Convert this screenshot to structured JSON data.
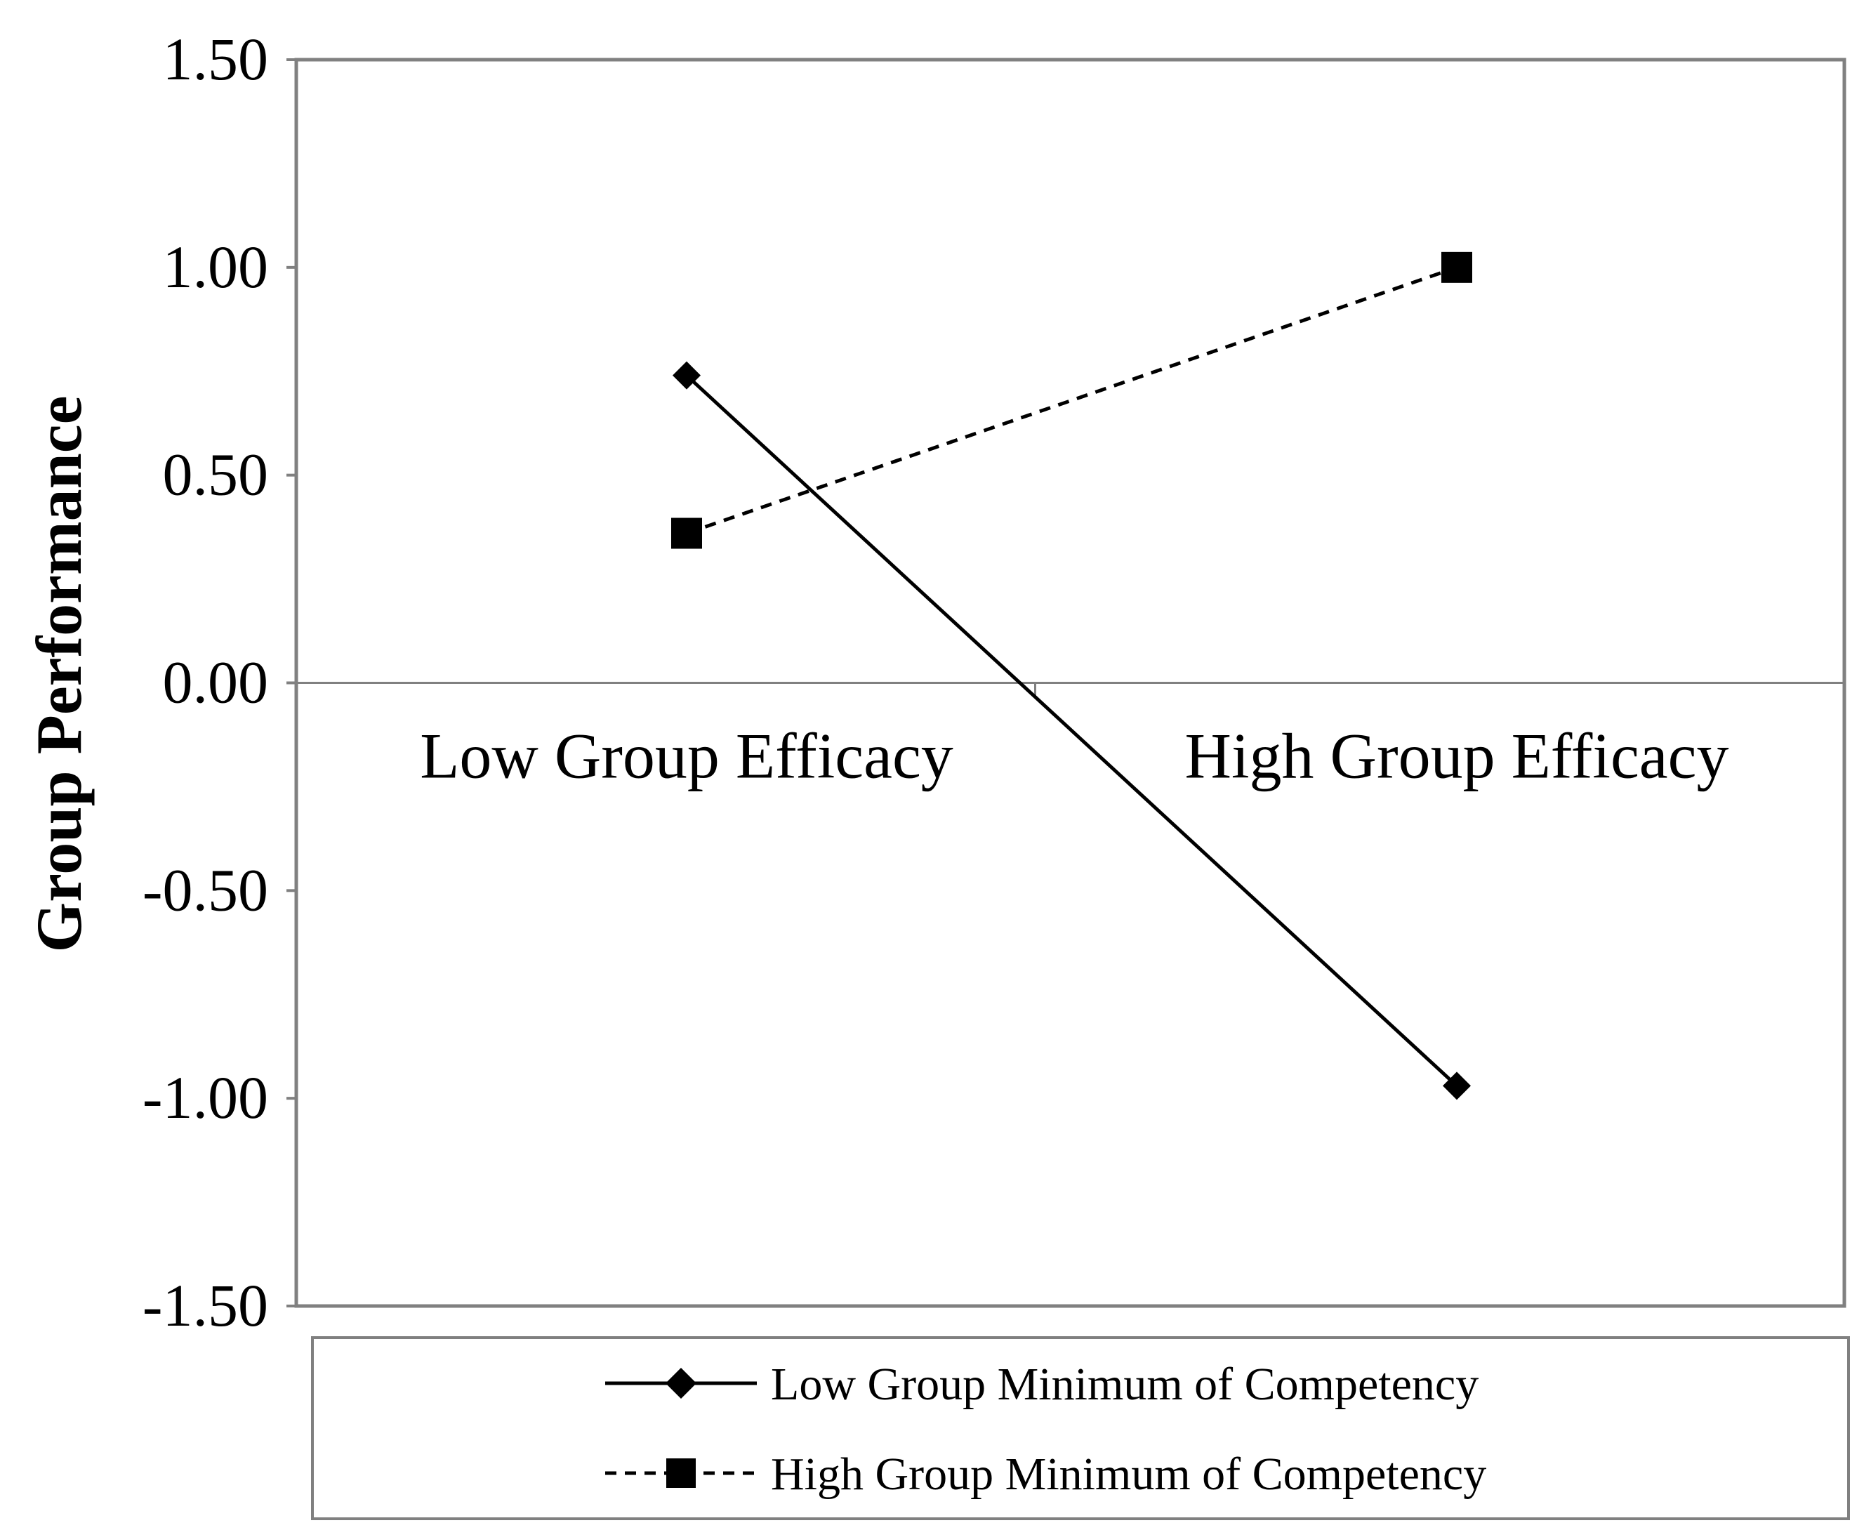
{
  "chart_data": {
    "type": "line",
    "title": "",
    "xlabel": "",
    "ylabel": "Group Performance",
    "categories": [
      "Low Group Efficacy",
      "High Group Efficacy"
    ],
    "ylim": [
      -1.5,
      1.5
    ],
    "yticks": [
      1.5,
      1.0,
      0.5,
      0.0,
      -0.5,
      -1.0,
      -1.5
    ],
    "ytick_labels": [
      "1.50",
      "1.00",
      "0.50",
      "0.00",
      "-0.50",
      "-1.00",
      "-1.50"
    ],
    "grid": false,
    "legend_position": "bottom",
    "series": [
      {
        "name": "Low Group Minimum of Competency",
        "values": [
          0.74,
          -0.97
        ],
        "marker": "diamond",
        "line": "solid",
        "color": "#000000"
      },
      {
        "name": "High Group Minimum of Competency",
        "values": [
          0.36,
          1.0
        ],
        "marker": "square",
        "line": "dashed",
        "color": "#000000"
      }
    ]
  }
}
